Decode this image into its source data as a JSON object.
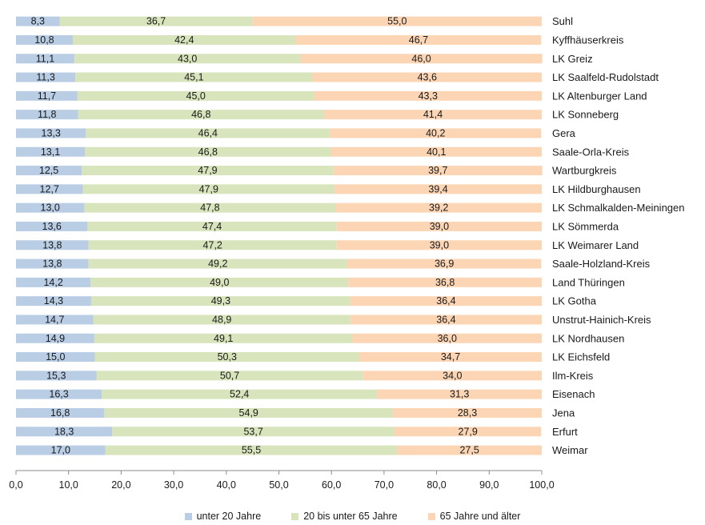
{
  "chart_data": {
    "type": "bar",
    "orientation": "horizontal",
    "stacked": true,
    "categories": [
      "Suhl",
      "Kyffhäuserkreis",
      "LK Greiz",
      "LK Saalfeld-Rudolstadt",
      "LK Altenburger Land",
      "LK Sonneberg",
      "Gera",
      "Saale-Orla-Kreis",
      "Wartburgkreis",
      "LK Hildburghausen",
      "LK Schmalkalden-Meiningen",
      "LK Sömmerda",
      "LK Weimarer Land",
      "Saale-Holzland-Kreis",
      "Land Thüringen",
      "LK Gotha",
      "Unstrut-Hainich-Kreis",
      "LK Nordhausen",
      "LK Eichsfeld",
      "Ilm-Kreis",
      "Eisenach",
      "Jena",
      "Erfurt",
      "Weimar"
    ],
    "series": [
      {
        "name": "unter 20 Jahre",
        "color": "#b9cde5",
        "values": [
          8.3,
          10.8,
          11.1,
          11.3,
          11.7,
          11.8,
          13.3,
          13.1,
          12.5,
          12.7,
          13.0,
          13.6,
          13.8,
          13.8,
          14.2,
          14.3,
          14.7,
          14.9,
          15.0,
          15.3,
          16.3,
          16.8,
          18.3,
          17.0
        ],
        "labels": [
          "8,3",
          "10,8",
          "11,1",
          "11,3",
          "11,7",
          "11,8",
          "13,3",
          "13,1",
          "12,5",
          "12,7",
          "13,0",
          "13,6",
          "13,8",
          "13,8",
          "14,2",
          "14,3",
          "14,7",
          "14,9",
          "15,0",
          "15,3",
          "16,3",
          "16,8",
          "18,3",
          "17,0"
        ]
      },
      {
        "name": "20 bis unter 65 Jahre",
        "color": "#d8e4bc",
        "values": [
          36.7,
          42.4,
          43.0,
          45.1,
          45.0,
          46.8,
          46.4,
          46.8,
          47.9,
          47.9,
          47.8,
          47.4,
          47.2,
          49.2,
          49.0,
          49.3,
          48.9,
          49.1,
          50.3,
          50.7,
          52.4,
          54.9,
          53.7,
          55.5
        ],
        "labels": [
          "36,7",
          "42,4",
          "43,0",
          "45,1",
          "45,0",
          "46,8",
          "46,4",
          "46,8",
          "47,9",
          "47,9",
          "47,8",
          "47,4",
          "47,2",
          "49,2",
          "49,0",
          "49,3",
          "48,9",
          "49,1",
          "50,3",
          "50,7",
          "52,4",
          "54,9",
          "53,7",
          "55,5"
        ]
      },
      {
        "name": "65 Jahre und älter",
        "color": "#fcd5b5",
        "values": [
          55.0,
          46.7,
          46.0,
          43.6,
          43.3,
          41.4,
          40.2,
          40.1,
          39.7,
          39.4,
          39.2,
          39.0,
          39.0,
          36.9,
          36.8,
          36.4,
          36.4,
          36.0,
          34.7,
          34.0,
          31.3,
          28.3,
          27.9,
          27.5
        ],
        "labels": [
          "55,0",
          "46,7",
          "46,0",
          "43,6",
          "43,3",
          "41,4",
          "40,2",
          "40,1",
          "39,7",
          "39,4",
          "39,2",
          "39,0",
          "39,0",
          "36,9",
          "36,8",
          "36,4",
          "36,4",
          "36,0",
          "34,7",
          "34,0",
          "31,3",
          "28,3",
          "27,9",
          "27,5"
        ]
      }
    ],
    "xlim": [
      0,
      100
    ],
    "xticks": [
      0,
      10,
      20,
      30,
      40,
      50,
      60,
      70,
      80,
      90,
      100
    ],
    "xtick_labels": [
      "0,0",
      "10,0",
      "20,0",
      "30,0",
      "40,0",
      "50,0",
      "60,0",
      "70,0",
      "80,0",
      "90,0",
      "100,0"
    ],
    "category_labels_position": "right",
    "grid": false,
    "legend_position": "bottom",
    "title": "",
    "xlabel": "",
    "ylabel": ""
  },
  "legend": {
    "items": [
      {
        "label": "unter 20 Jahre",
        "color": "#b9cde5"
      },
      {
        "label": "20 bis unter 65 Jahre",
        "color": "#d8e4bc"
      },
      {
        "label": "65 Jahre und älter",
        "color": "#fcd5b5"
      }
    ]
  }
}
